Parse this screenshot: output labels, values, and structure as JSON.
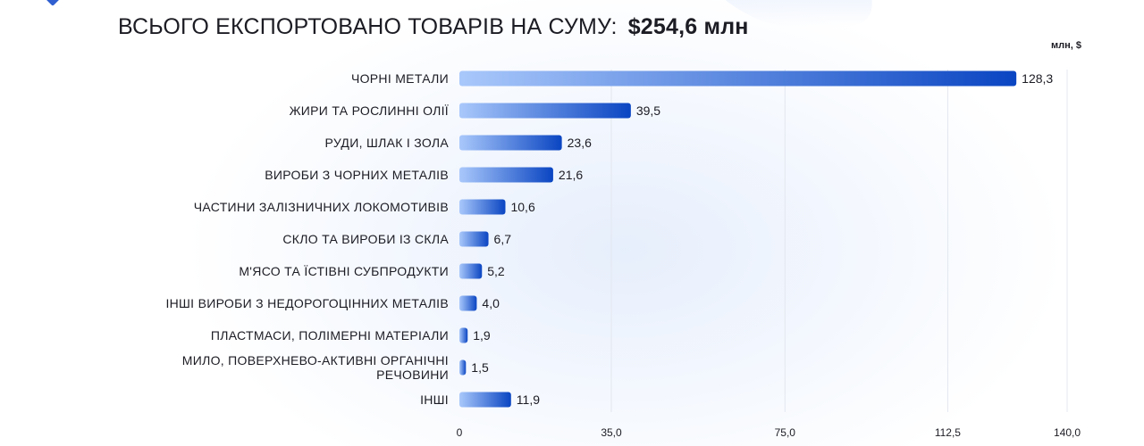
{
  "header": {
    "title_prefix": "ВСЬОГО ЕКСПОРТОВАНО ТОВАРІВ НА СУМУ:",
    "title_total": "$254,6 млн",
    "unit": "млн, $"
  },
  "colors": {
    "bar_start": "#a9c8fb",
    "bar_end": "#0a45c2",
    "grid": "#e3e7ef",
    "text": "#1c1c24"
  },
  "chart_data": {
    "type": "bar",
    "orientation": "horizontal",
    "title": "ВСЬОГО ЕКСПОРТОВАНО ТОВАРІВ НА СУМУ: $254,6 млн",
    "unit_label": "млн, $",
    "categories": [
      [
        "ЧОРНІ МЕТАЛИ"
      ],
      [
        "ЖИРИ ТА РОСЛИННІ ОЛІЇ"
      ],
      [
        "РУДИ, ШЛАК І ЗОЛА"
      ],
      [
        "ВИРОБИ З ЧОРНИХ МЕТАЛІВ"
      ],
      [
        "ЧАСТИНИ ЗАЛІЗНИЧНИХ ЛОКОМОТИВІВ"
      ],
      [
        "СКЛО ТА ВИРОБИ ІЗ СКЛА"
      ],
      [
        "М'ЯСО ТА ЇСТІВНІ СУБПРОДУКТИ"
      ],
      [
        "ІНШІ ВИРОБИ З НЕДОРОГОЦІННИХ МЕТАЛІВ"
      ],
      [
        "ПЛАСТМАСИ, ПОЛІМЕРНІ МАТЕРІАЛИ"
      ],
      [
        "МИЛО, ПОВЕРХНЕВО-АКТИВНІ ОРГАНІЧНІ",
        "РЕЧОВИНИ"
      ],
      [
        "ІНШІ"
      ]
    ],
    "values": [
      128.3,
      39.5,
      23.6,
      21.6,
      10.6,
      6.7,
      5.2,
      4.0,
      1.9,
      1.5,
      11.9
    ],
    "value_labels": [
      "128,3",
      "39,5",
      "23,6",
      "21,6",
      "10,6",
      "6,7",
      "5,2",
      "4,0",
      "1,9",
      "1,5",
      "11,9"
    ],
    "xlim": [
      0,
      140
    ],
    "x_ticks": [
      0,
      35,
      75,
      112.5,
      140
    ],
    "x_tick_labels": [
      "0",
      "35,0",
      "75,0",
      "112,5",
      "140,0"
    ],
    "grid": true
  }
}
